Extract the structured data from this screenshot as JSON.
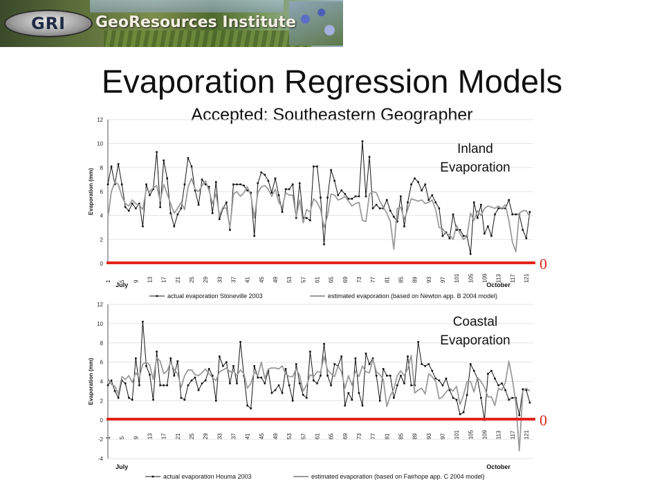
{
  "banner": {
    "logo_text": "GRI",
    "name": "GeoResources Institute"
  },
  "slide": {
    "title": "Evaporation Regression Models",
    "subtitle": "Accepted: Southeastern Geographer",
    "inland_label_1": "Inland",
    "inland_label_2": "Evaporation",
    "coastal_label_1": "Coastal",
    "coastal_label_2": "Evaporation",
    "zero_marker": "0"
  },
  "colors": {
    "actual": "#111111",
    "estimated": "#9a9a9a",
    "zero_line": "#e2241c"
  },
  "chart_data": [
    {
      "type": "line",
      "xlabel": "",
      "ylabel": "Evaporation (mm)",
      "ylim": [
        0,
        12
      ],
      "yticks": [
        0,
        2,
        4,
        6,
        8,
        10,
        12
      ],
      "xlim": [
        1,
        123
      ],
      "xticks": [
        1,
        5,
        9,
        13,
        17,
        21,
        25,
        29,
        33,
        37,
        41,
        45,
        49,
        53,
        57,
        61,
        65,
        69,
        73,
        77,
        81,
        85,
        89,
        93,
        97,
        101,
        105,
        109,
        113,
        117,
        121
      ],
      "month_labels": [
        {
          "text": "July",
          "x": 5
        },
        {
          "text": "October",
          "x": 113
        }
      ],
      "series": [
        {
          "name": "actual evaporation Stoneville 2003",
          "x": [
            1,
            2,
            3,
            4,
            5,
            6,
            7,
            8,
            9,
            10,
            11,
            12,
            13,
            14,
            15,
            16,
            17,
            18,
            19,
            20,
            21,
            22,
            23,
            24,
            25,
            26,
            27,
            28,
            29,
            30,
            31,
            32,
            33,
            34,
            35,
            36,
            37,
            38,
            39,
            40,
            41,
            42,
            43,
            44,
            45,
            46,
            47,
            48,
            49,
            50,
            51,
            52,
            53,
            54,
            55,
            56,
            57,
            58,
            59,
            60,
            61,
            62,
            63,
            64,
            65,
            66,
            67,
            68,
            69,
            70,
            71,
            72,
            73,
            74,
            75,
            76,
            77,
            78,
            79,
            80,
            81,
            82,
            83,
            84,
            85,
            86,
            87,
            88,
            89,
            90,
            91,
            92,
            93,
            94,
            95,
            96,
            97,
            98,
            99,
            100,
            101,
            102,
            103,
            104,
            105,
            106,
            107,
            108,
            109,
            110,
            111,
            112,
            113,
            114,
            115,
            116,
            117,
            118,
            119,
            120,
            121,
            122
          ],
          "y": [
            6.6,
            8.1,
            6.6,
            8.3,
            6.6,
            4.7,
            4.4,
            5.0,
            4.6,
            5.0,
            3.1,
            6.6,
            5.7,
            6.2,
            9.3,
            4.7,
            8.6,
            7.1,
            4.2,
            3.1,
            4.1,
            4.6,
            6.6,
            8.8,
            8.1,
            6.1,
            4.9,
            7.0,
            6.6,
            6.4,
            4.2,
            6.8,
            3.7,
            4.6,
            5.1,
            2.8,
            6.6,
            6.6,
            6.6,
            6.5,
            6.1,
            5.9,
            2.3,
            6.7,
            7.6,
            7.4,
            6.9,
            5.9,
            7.1,
            5.7,
            4.3,
            6.2,
            6.2,
            6.6,
            3.8,
            6.7,
            3.8,
            3.8,
            3.6,
            8.1,
            8.1,
            5.5,
            1.6,
            5.5,
            7.8,
            6.9,
            5.7,
            6.1,
            5.8,
            5.4,
            5.4,
            5.6,
            5.6,
            10.2,
            5.6,
            8.9,
            4.6,
            4.9,
            4.6,
            4.6,
            5.3,
            4.4,
            3.9,
            3.5,
            5.6,
            3.1,
            5.1,
            6.6,
            7.1,
            6.8,
            6.1,
            6.6,
            5.3,
            5.7,
            5.1,
            4.6,
            2.3,
            2.6,
            2.1,
            4.1,
            2.8,
            2.8,
            2.3,
            2.3,
            0.8,
            5.1,
            3.8,
            4.9,
            2.5,
            3.1,
            2.3,
            4.1,
            4.6,
            4.6,
            4.6,
            5.3,
            4.1,
            4.1,
            4.1,
            2.8,
            2.1,
            4.3
          ]
        },
        {
          "name": "estimated evaporation (based on Newton app. B 2004 model)",
          "x": [
            1,
            2,
            3,
            4,
            5,
            6,
            7,
            8,
            9,
            10,
            11,
            12,
            13,
            14,
            15,
            16,
            17,
            18,
            19,
            20,
            21,
            22,
            23,
            24,
            25,
            26,
            27,
            28,
            29,
            30,
            31,
            32,
            33,
            34,
            35,
            36,
            37,
            38,
            39,
            40,
            41,
            42,
            43,
            44,
            45,
            46,
            47,
            48,
            49,
            50,
            51,
            52,
            53,
            54,
            55,
            56,
            57,
            58,
            59,
            60,
            61,
            62,
            63,
            64,
            65,
            66,
            67,
            68,
            69,
            70,
            71,
            72,
            73,
            74,
            75,
            76,
            77,
            78,
            79,
            80,
            81,
            82,
            83,
            84,
            85,
            86,
            87,
            88,
            89,
            90,
            91,
            92,
            93,
            94,
            95,
            96,
            97,
            98,
            99,
            100,
            101,
            102,
            103,
            104,
            105,
            106,
            107,
            108,
            109,
            110,
            111,
            112,
            113,
            114,
            115,
            116,
            117,
            118,
            119,
            120,
            121,
            122
          ],
          "y": [
            3.8,
            6.0,
            6.8,
            6.6,
            5.6,
            5.0,
            4.8,
            5.3,
            5.0,
            4.9,
            4.5,
            6.2,
            6.0,
            6.3,
            6.5,
            5.2,
            6.6,
            5.8,
            5.0,
            4.2,
            4.6,
            5.1,
            4.5,
            6.4,
            7.1,
            6.2,
            6.0,
            6.5,
            6.9,
            6.1,
            5.0,
            5.8,
            4.0,
            4.7,
            4.6,
            3.0,
            5.8,
            6.0,
            5.6,
            5.9,
            6.4,
            5.7,
            3.8,
            5.9,
            6.4,
            6.5,
            6.2,
            5.6,
            6.2,
            5.1,
            4.7,
            5.9,
            5.7,
            5.7,
            3.9,
            5.3,
            3.4,
            4.5,
            4.3,
            5.4,
            5.1,
            4.5,
            3.0,
            4.0,
            5.8,
            5.7,
            5.3,
            5.4,
            5.6,
            5.2,
            4.8,
            5.0,
            5.1,
            3.6,
            3.5,
            5.8,
            6.0,
            5.9,
            5.2,
            4.7,
            4.2,
            3.5,
            1.2,
            4.6,
            4.7,
            3.7,
            4.5,
            5.4,
            5.3,
            5.2,
            5.3,
            5.0,
            5.1,
            5.3,
            4.5,
            3.0,
            2.9,
            2.5,
            2.4,
            2.0,
            3.2,
            2.5,
            2.0,
            2.3,
            4.2,
            3.6,
            4.4,
            4.0,
            4.6,
            4.8,
            4.7,
            4.6,
            4.8,
            4.6,
            4.9,
            3.6,
            1.8,
            1.0,
            4.2,
            4.4,
            4.4,
            3.9
          ]
        }
      ]
    },
    {
      "type": "line",
      "xlabel": "",
      "ylabel": "Evaporation (mm)",
      "ylim": [
        -4,
        12
      ],
      "yticks": [
        -4,
        -2,
        0,
        2,
        4,
        6,
        8,
        10,
        12
      ],
      "xlim": [
        1,
        123
      ],
      "xticks": [
        1,
        5,
        9,
        13,
        17,
        21,
        25,
        29,
        33,
        37,
        41,
        45,
        49,
        53,
        57,
        61,
        65,
        69,
        73,
        77,
        81,
        85,
        89,
        93,
        97,
        101,
        105,
        109,
        113,
        117,
        121
      ],
      "month_labels": [
        {
          "text": "July",
          "x": 5
        },
        {
          "text": "October",
          "x": 113
        }
      ],
      "series": [
        {
          "name": "actual evaporation Houma 2003",
          "x": [
            1,
            2,
            3,
            4,
            5,
            6,
            7,
            8,
            9,
            10,
            11,
            12,
            13,
            14,
            15,
            16,
            17,
            18,
            19,
            20,
            21,
            22,
            23,
            24,
            25,
            26,
            27,
            28,
            29,
            30,
            31,
            32,
            33,
            34,
            35,
            36,
            37,
            38,
            39,
            40,
            41,
            42,
            43,
            44,
            45,
            46,
            47,
            48,
            49,
            50,
            51,
            52,
            53,
            54,
            55,
            56,
            57,
            58,
            59,
            60,
            61,
            62,
            63,
            64,
            65,
            66,
            67,
            68,
            69,
            70,
            71,
            72,
            73,
            74,
            75,
            76,
            77,
            78,
            79,
            80,
            81,
            82,
            83,
            84,
            85,
            86,
            87,
            88,
            89,
            90,
            91,
            92,
            93,
            94,
            95,
            96,
            97,
            98,
            99,
            100,
            101,
            102,
            103,
            104,
            105,
            106,
            107,
            108,
            109,
            110,
            111,
            112,
            113,
            114,
            115,
            116,
            117,
            118,
            119,
            120,
            121,
            122
          ],
          "y": [
            3.6,
            4.1,
            3.0,
            2.3,
            4.1,
            3.8,
            2.3,
            2.1,
            6.4,
            3.6,
            10.2,
            5.6,
            4.7,
            2.1,
            7.1,
            3.6,
            3.6,
            3.6,
            6.4,
            4.6,
            6.1,
            2.3,
            2.1,
            3.6,
            4.1,
            4.4,
            3.1,
            3.8,
            4.1,
            5.3,
            4.6,
            2.0,
            6.6,
            5.6,
            6.0,
            3.8,
            5.6,
            3.8,
            8.1,
            4.6,
            1.5,
            1.2,
            5.6,
            4.4,
            4.4,
            3.8,
            5.1,
            2.8,
            3.1,
            3.6,
            2.8,
            5.3,
            3.6,
            2.0,
            5.8,
            3.8,
            2.6,
            2.3,
            7.1,
            4.1,
            3.8,
            4.6,
            7.9,
            4.6,
            3.6,
            5.8,
            5.6,
            6.6,
            1.5,
            2.8,
            2.1,
            6.4,
            2.8,
            1.5,
            6.9,
            5.8,
            6.4,
            4.6,
            2.0,
            5.3,
            4.6,
            4.6,
            2.3,
            3.6,
            4.6,
            3.8,
            6.6,
            3.6,
            3.6,
            8.1,
            5.8,
            5.6,
            5.8,
            5.1,
            4.3,
            4.1,
            3.6,
            4.3,
            3.1,
            2.3,
            2.1,
            0.6,
            0.8,
            2.6,
            5.8,
            5.1,
            4.3,
            2.3,
            0.0,
            4.8,
            5.1,
            4.3,
            3.6,
            3.8,
            3.1,
            2.1,
            2.3,
            2.3,
            0.5,
            3.2,
            3.1,
            1.8
          ]
        },
        {
          "name": "estimated evaporation (based on Fairhope app. C 2004 model)",
          "x": [
            1,
            2,
            3,
            4,
            5,
            6,
            7,
            8,
            9,
            10,
            11,
            12,
            13,
            14,
            15,
            16,
            17,
            18,
            19,
            20,
            21,
            22,
            23,
            24,
            25,
            26,
            27,
            28,
            29,
            30,
            31,
            32,
            33,
            34,
            35,
            36,
            37,
            38,
            39,
            40,
            41,
            42,
            43,
            44,
            45,
            46,
            47,
            48,
            49,
            50,
            51,
            52,
            53,
            54,
            55,
            56,
            57,
            58,
            59,
            60,
            61,
            62,
            63,
            64,
            65,
            66,
            67,
            68,
            69,
            70,
            71,
            72,
            73,
            74,
            75,
            76,
            77,
            78,
            79,
            80,
            81,
            82,
            83,
            84,
            85,
            86,
            87,
            88,
            89,
            90,
            91,
            92,
            93,
            94,
            95,
            96,
            97,
            98,
            99,
            100,
            101,
            102,
            103,
            104,
            105,
            106,
            107,
            108,
            109,
            110,
            111,
            112,
            113,
            114,
            115,
            116,
            117,
            118,
            119,
            120,
            121,
            122
          ],
          "y": [
            4.3,
            3.7,
            3.5,
            2.7,
            4.5,
            4.2,
            4.6,
            3.9,
            4.9,
            4.4,
            5.8,
            6.0,
            5.7,
            4.2,
            6.5,
            6.1,
            4.8,
            5.1,
            6.0,
            5.2,
            4.8,
            3.4,
            4.6,
            5.2,
            5.2,
            4.7,
            4.6,
            4.9,
            5.3,
            4.8,
            4.4,
            4.1,
            5.0,
            5.2,
            5.4,
            5.0,
            5.1,
            4.6,
            5.2,
            4.8,
            3.3,
            3.8,
            5.0,
            4.6,
            6.0,
            4.3,
            5.3,
            5.4,
            5.4,
            5.3,
            5.6,
            4.8,
            4.5,
            4.5,
            5.3,
            4.6,
            3.0,
            3.6,
            4.7,
            4.5,
            5.0,
            5.0,
            6.6,
            5.2,
            4.8,
            4.5,
            5.6,
            5.0,
            3.3,
            4.6,
            3.6,
            5.1,
            4.5,
            5.6,
            5.0,
            4.9,
            6.3,
            5.0,
            4.7,
            4.2,
            1.4,
            2.5,
            3.2,
            4.6,
            5.1,
            4.6,
            5.3,
            6.7,
            2.8,
            3.1,
            3.3,
            2.7,
            4.8,
            4.5,
            4.0,
            2.2,
            2.4,
            2.9,
            3.3,
            3.0,
            3.5,
            1.6,
            2.6,
            4.0,
            4.0,
            2.9,
            4.4,
            4.0,
            3.4,
            2.4,
            2.4,
            1.5,
            3.3,
            3.1,
            3.9,
            6.1,
            4.2,
            1.8,
            -3.2,
            3.0,
            3.3,
            3.0
          ]
        }
      ]
    }
  ]
}
